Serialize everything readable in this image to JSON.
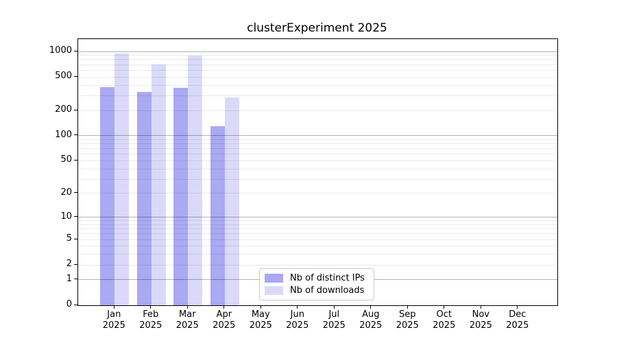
{
  "chart_data": {
    "type": "bar",
    "title": "clusterExperiment 2025",
    "x_categories": [
      "Jan",
      "Feb",
      "Mar",
      "Apr",
      "May",
      "Jun",
      "Jul",
      "Aug",
      "Sep",
      "Oct",
      "Nov",
      "Dec"
    ],
    "x_year": "2025",
    "series": [
      {
        "name": "Nb of distinct IPs",
        "color": "#a9a9f4",
        "values": [
          375,
          330,
          370,
          130,
          null,
          null,
          null,
          null,
          null,
          null,
          null,
          null
        ]
      },
      {
        "name": "Nb of downloads",
        "color": "#dadaf8",
        "values": [
          940,
          700,
          890,
          285,
          null,
          null,
          null,
          null,
          null,
          null,
          null,
          null
        ]
      }
    ],
    "y_axis": {
      "scale": "log1p",
      "tick_labels": [
        0,
        1,
        2,
        5,
        10,
        20,
        50,
        100,
        200,
        500,
        1000
      ],
      "major_gridlines": [
        1,
        10,
        100,
        1000
      ],
      "minor_gridlines": [
        2,
        3,
        4,
        5,
        6,
        7,
        8,
        9,
        20,
        30,
        40,
        50,
        60,
        70,
        80,
        90,
        200,
        300,
        400,
        500,
        600,
        700,
        800,
        900
      ],
      "ylim": [
        0,
        1400
      ],
      "grid": "horizontal"
    },
    "legend_position": "bottom-center",
    "colors": {
      "background": "#ffffff",
      "spine": "#000000",
      "major_grid": "rgba(0,0,0,0.30)",
      "minor_grid": "rgba(0,0,0,0.08)",
      "text": "#000000"
    }
  }
}
